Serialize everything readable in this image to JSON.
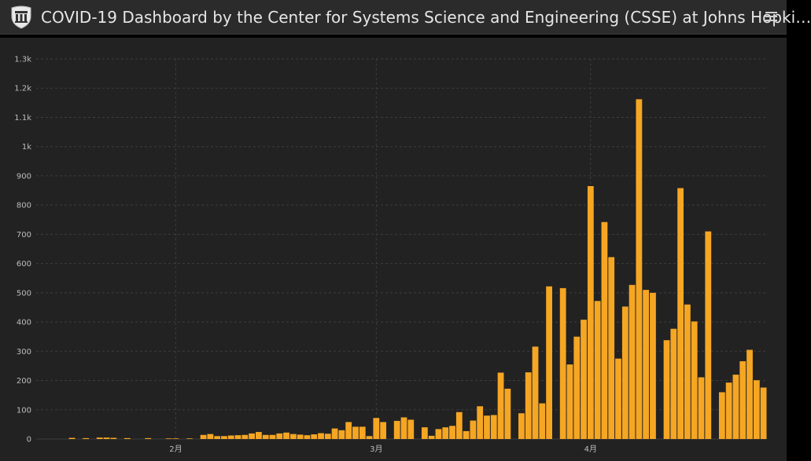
{
  "header": {
    "title": "COVID-19 Dashboard by the Center for Systems Science and Engineering (CSSE) at Johns Hopki…",
    "logo_icon": "university-shield-icon",
    "menu_icon": "hamburger-menu-icon"
  },
  "colors": {
    "bar": "#f5a623",
    "panel": "#222222",
    "header": "#2b2b2b",
    "grid": "#3d3d3d"
  },
  "chart_data": {
    "type": "bar",
    "title": "",
    "xlabel": "",
    "ylabel": "",
    "ylim": [
      0,
      1300
    ],
    "yticks": [
      0,
      100,
      200,
      300,
      400,
      500,
      600,
      700,
      800,
      900,
      1000,
      1100,
      1200,
      1300
    ],
    "ytick_labels": [
      "0",
      "100",
      "200",
      "300",
      "400",
      "500",
      "600",
      "700",
      "800",
      "900",
      "1k",
      "1.1k",
      "1.2k",
      "1.3k"
    ],
    "xticks": [
      {
        "index": 19,
        "label": "2月"
      },
      {
        "index": 48,
        "label": "3月"
      },
      {
        "index": 79,
        "label": "4月"
      }
    ],
    "grid": true,
    "values": [
      0,
      0,
      0,
      0,
      4,
      0,
      3,
      0,
      5,
      5,
      4,
      0,
      3,
      0,
      0,
      3,
      0,
      0,
      2,
      2,
      0,
      2,
      0,
      14,
      17,
      10,
      10,
      12,
      13,
      14,
      19,
      24,
      14,
      14,
      19,
      22,
      17,
      15,
      13,
      16,
      20,
      18,
      36,
      30,
      58,
      42,
      42,
      10,
      72,
      58,
      0,
      62,
      74,
      66,
      0,
      40,
      11,
      34,
      40,
      45,
      92,
      27,
      63,
      112,
      80,
      82,
      227,
      172,
      0,
      88,
      228,
      316,
      122,
      522,
      0,
      516,
      255,
      350,
      408,
      865,
      472,
      742,
      622,
      275,
      453,
      527,
      1162,
      510,
      500,
      0,
      338,
      377,
      858,
      460,
      402,
      211,
      710,
      0,
      160,
      193,
      220,
      266,
      305,
      201,
      176
    ]
  }
}
